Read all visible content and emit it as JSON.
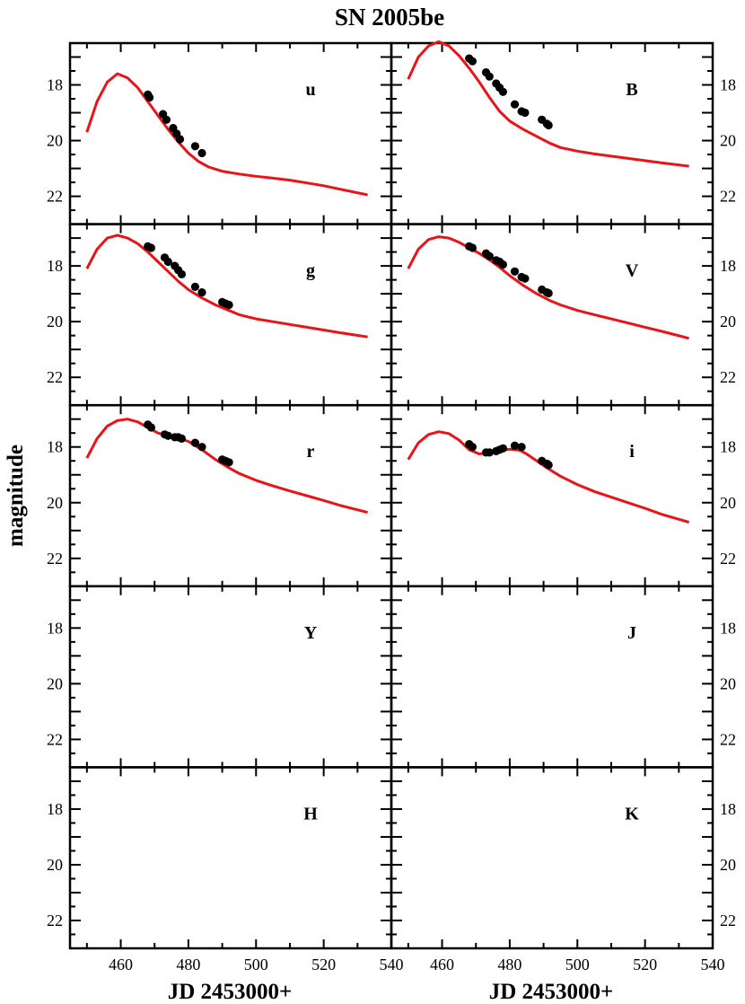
{
  "title": "SN 2005be",
  "ylabel": "magnitude",
  "xlabel_left": "JD 2453000+",
  "xlabel_right": "JD 2453000+",
  "colors": {
    "model_curve": "#e8141a",
    "data_points": "#000000",
    "axes": "#000000"
  },
  "chart_data": {
    "type": "scatter",
    "title": "SN 2005be",
    "ylabel": "magnitude",
    "xlabel": "JD 2453000+",
    "xlim": [
      445,
      540
    ],
    "ylim": [
      23,
      16.5
    ],
    "y_inverted": true,
    "x_ticks": [
      460,
      480,
      500,
      520,
      540
    ],
    "y_ticks": [
      18,
      20,
      22
    ],
    "grid": false,
    "panels": [
      {
        "band": "u",
        "model": {
          "x": [
            450,
            453,
            456,
            459,
            462,
            465,
            468,
            471,
            474,
            477,
            480,
            483,
            486,
            490,
            495,
            500,
            505,
            510,
            515,
            520,
            525,
            533
          ],
          "y": [
            19.7,
            18.6,
            17.9,
            17.6,
            17.75,
            18.1,
            18.6,
            19.1,
            19.6,
            20.05,
            20.45,
            20.75,
            20.95,
            21.1,
            21.2,
            21.28,
            21.35,
            21.42,
            21.52,
            21.62,
            21.75,
            21.95
          ]
        },
        "points": {
          "x": [
            468,
            468.5,
            472.5,
            473.5,
            475.5,
            476.5,
            477.5,
            482,
            484
          ],
          "y": [
            18.35,
            18.45,
            19.05,
            19.25,
            19.55,
            19.75,
            19.95,
            20.2,
            20.45
          ]
        }
      },
      {
        "band": "B",
        "model": {
          "x": [
            450,
            453,
            456,
            459,
            462,
            465,
            468,
            471,
            474,
            477,
            480,
            484,
            488,
            492,
            495,
            500,
            505,
            510,
            515,
            520,
            525,
            533
          ],
          "y": [
            17.8,
            17.0,
            16.6,
            16.45,
            16.6,
            16.95,
            17.4,
            17.9,
            18.45,
            18.95,
            19.3,
            19.6,
            19.85,
            20.1,
            20.25,
            20.38,
            20.48,
            20.56,
            20.64,
            20.72,
            20.8,
            20.92
          ]
        },
        "points": {
          "x": [
            468,
            469,
            473,
            474,
            476,
            477,
            478,
            481.5,
            483.5,
            484.5,
            489.5,
            491,
            491.5
          ],
          "y": [
            17.05,
            17.15,
            17.55,
            17.7,
            17.95,
            18.1,
            18.25,
            18.7,
            18.95,
            19.0,
            19.25,
            19.4,
            19.45
          ]
        }
      },
      {
        "band": "g",
        "model": {
          "x": [
            450,
            453,
            456,
            459,
            462,
            465,
            468,
            471,
            474,
            477,
            480,
            484,
            488,
            492,
            495,
            500,
            505,
            510,
            515,
            520,
            525,
            533
          ],
          "y": [
            18.1,
            17.4,
            17.0,
            16.9,
            17.0,
            17.2,
            17.5,
            17.85,
            18.2,
            18.55,
            18.85,
            19.15,
            19.4,
            19.6,
            19.75,
            19.9,
            20.0,
            20.1,
            20.2,
            20.3,
            20.4,
            20.55
          ]
        },
        "points": {
          "x": [
            468,
            469,
            473,
            474,
            476,
            477,
            478,
            482,
            484,
            490,
            491,
            492
          ],
          "y": [
            17.3,
            17.35,
            17.7,
            17.85,
            18.0,
            18.15,
            18.3,
            18.75,
            18.95,
            19.3,
            19.35,
            19.4
          ]
        }
      },
      {
        "band": "V",
        "model": {
          "x": [
            450,
            453,
            456,
            459,
            462,
            465,
            468,
            471,
            474,
            477,
            480,
            484,
            488,
            492,
            495,
            500,
            505,
            510,
            515,
            520,
            525,
            533
          ],
          "y": [
            18.1,
            17.4,
            17.05,
            16.95,
            17.0,
            17.15,
            17.35,
            17.55,
            17.78,
            18.05,
            18.35,
            18.7,
            19.0,
            19.25,
            19.4,
            19.6,
            19.75,
            19.9,
            20.05,
            20.2,
            20.35,
            20.6
          ]
        },
        "points": {
          "x": [
            468,
            469,
            473,
            474,
            476,
            477,
            478,
            481.5,
            483.5,
            484.5,
            489.5,
            491,
            491.5
          ],
          "y": [
            17.3,
            17.35,
            17.55,
            17.65,
            17.8,
            17.85,
            17.95,
            18.2,
            18.4,
            18.45,
            18.85,
            18.95,
            18.98
          ]
        }
      },
      {
        "band": "r",
        "model": {
          "x": [
            450,
            453,
            456,
            459,
            462,
            465,
            468,
            471,
            474,
            477,
            480,
            484,
            488,
            492,
            495,
            500,
            505,
            510,
            515,
            520,
            525,
            533
          ],
          "y": [
            18.4,
            17.7,
            17.25,
            17.05,
            17.0,
            17.1,
            17.3,
            17.5,
            17.6,
            17.68,
            17.8,
            18.1,
            18.45,
            18.75,
            18.95,
            19.2,
            19.4,
            19.58,
            19.75,
            19.92,
            20.1,
            20.35
          ]
        },
        "points": {
          "x": [
            468,
            469,
            473,
            474,
            476,
            477,
            478,
            482,
            484,
            490,
            491,
            492
          ],
          "y": [
            17.2,
            17.3,
            17.55,
            17.6,
            17.65,
            17.65,
            17.7,
            17.85,
            18.0,
            18.45,
            18.5,
            18.55
          ]
        }
      },
      {
        "band": "i",
        "model": {
          "x": [
            450,
            453,
            456,
            459,
            462,
            465,
            468,
            471,
            474,
            477,
            480,
            483,
            485,
            488,
            491,
            495,
            500,
            505,
            510,
            515,
            520,
            525,
            533
          ],
          "y": [
            18.45,
            17.85,
            17.55,
            17.45,
            17.52,
            17.75,
            18.1,
            18.25,
            18.2,
            18.12,
            18.08,
            18.12,
            18.25,
            18.5,
            18.75,
            19.05,
            19.35,
            19.6,
            19.8,
            20.0,
            20.2,
            20.42,
            20.7
          ]
        },
        "points": {
          "x": [
            468,
            469,
            473,
            474,
            476,
            477,
            478,
            481.5,
            483.5,
            489.5,
            491,
            491.5
          ],
          "y": [
            17.9,
            18.0,
            18.2,
            18.2,
            18.15,
            18.1,
            18.05,
            17.95,
            18.0,
            18.5,
            18.6,
            18.65
          ]
        }
      },
      {
        "band": "Y",
        "model": null,
        "points": null
      },
      {
        "band": "J",
        "model": null,
        "points": null
      },
      {
        "band": "H",
        "model": null,
        "points": null
      },
      {
        "band": "K",
        "model": null,
        "points": null
      }
    ]
  }
}
